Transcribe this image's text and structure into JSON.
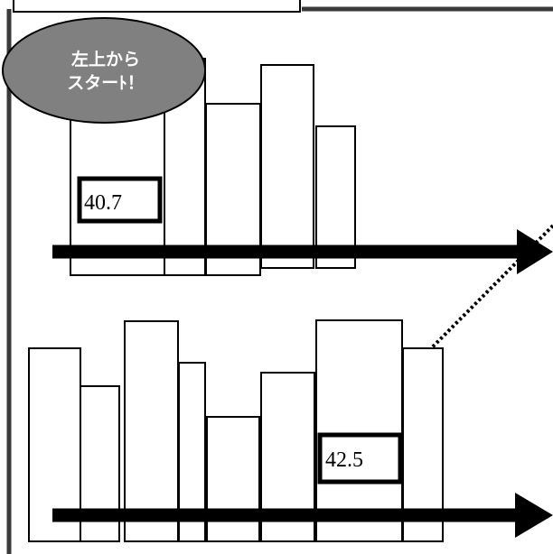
{
  "start_badge": {
    "line1": "左上から",
    "line2": "スターﾄ！"
  },
  "row_top": {
    "value_label": "40.7"
  },
  "row_bottom": {
    "value_label": "42.5"
  },
  "colors": {
    "bubble_fill": "#808080",
    "line": "#000000",
    "background": "#ffffff",
    "frame": "#3a3a3a"
  }
}
